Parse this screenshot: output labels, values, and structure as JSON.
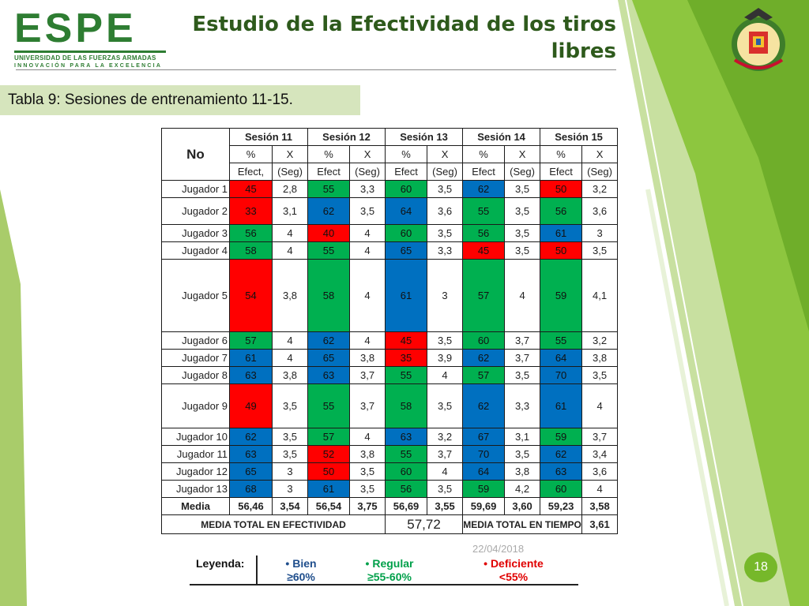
{
  "logo": {
    "name": "ESPE",
    "subtitle": "UNIVERSIDAD DE LAS FUERZAS ARMADAS",
    "tagline": "INNOVACIÓN PARA LA EXCELENCIA"
  },
  "title": {
    "line1": "Estudio de la Efectividad de los tiros",
    "line2": "libres"
  },
  "caption": "Tabla 9: Sesiones de entrenamiento 11-15.",
  "table": {
    "no_label": "No",
    "sessions": [
      "Sesión 11",
      "Sesión 12",
      "Sesión 13",
      "Sesión 14",
      "Sesión 15"
    ],
    "sub1": [
      "%",
      "X"
    ],
    "sub2": [
      "Efect,",
      "(Seg)",
      "Efect",
      "(Seg)",
      "Efect",
      "(Seg)",
      "Efect",
      "(Seg)",
      "Efect",
      "(Seg)"
    ],
    "rows": [
      {
        "name": "Jugador 1",
        "cells": [
          "45",
          "2,8",
          "55",
          "3,3",
          "60",
          "3,5",
          "62",
          "3,5",
          "50",
          "3,2"
        ],
        "colors": [
          "r",
          "g",
          "g",
          "b",
          "r"
        ]
      },
      {
        "name": "Jugador 2",
        "cells": [
          "33",
          "3,1",
          "62",
          "3,5",
          "64",
          "3,6",
          "55",
          "3,5",
          "56",
          "3,6"
        ],
        "colors": [
          "r",
          "b",
          "b",
          "g",
          "g"
        ]
      },
      {
        "name": "Jugador 3",
        "cells": [
          "56",
          "4",
          "40",
          "4",
          "60",
          "3,5",
          "56",
          "3,5",
          "61",
          "3"
        ],
        "colors": [
          "g",
          "r",
          "g",
          "g",
          "b"
        ]
      },
      {
        "name": "Jugador 4",
        "cells": [
          "58",
          "4",
          "55",
          "4",
          "65",
          "3,3",
          "45",
          "3,5",
          "50",
          "3,5"
        ],
        "colors": [
          "g",
          "g",
          "b",
          "r",
          "r"
        ]
      },
      {
        "name": "Jugador 5",
        "cells": [
          "54",
          "3,8",
          "58",
          "4",
          "61",
          "3",
          "57",
          "4",
          "59",
          "4,1"
        ],
        "colors": [
          "r",
          "g",
          "b",
          "g",
          "g"
        ]
      },
      {
        "name": "Jugador 6",
        "cells": [
          "57",
          "4",
          "62",
          "4",
          "45",
          "3,5",
          "60",
          "3,7",
          "55",
          "3,2"
        ],
        "colors": [
          "g",
          "b",
          "r",
          "g",
          "g"
        ]
      },
      {
        "name": "Jugador 7",
        "cells": [
          "61",
          "4",
          "65",
          "3,8",
          "35",
          "3,9",
          "62",
          "3,7",
          "64",
          "3,8"
        ],
        "colors": [
          "b",
          "b",
          "r",
          "b",
          "b"
        ]
      },
      {
        "name": "Jugador 8",
        "cells": [
          "63",
          "3,8",
          "63",
          "3,7",
          "55",
          "4",
          "57",
          "3,5",
          "70",
          "3,5"
        ],
        "colors": [
          "b",
          "b",
          "g",
          "g",
          "b"
        ]
      },
      {
        "name": "Jugador 9",
        "cells": [
          "49",
          "3,5",
          "55",
          "3,7",
          "58",
          "3,5",
          "62",
          "3,3",
          "61",
          "4"
        ],
        "colors": [
          "r",
          "g",
          "g",
          "b",
          "b"
        ]
      },
      {
        "name": "Jugador 10",
        "cells": [
          "62",
          "3,5",
          "57",
          "4",
          "63",
          "3,2",
          "67",
          "3,1",
          "59",
          "3,7"
        ],
        "colors": [
          "b",
          "g",
          "b",
          "b",
          "g"
        ]
      },
      {
        "name": "Jugador 11",
        "cells": [
          "63",
          "3,5",
          "52",
          "3,8",
          "55",
          "3,7",
          "70",
          "3,5",
          "62",
          "3,4"
        ],
        "colors": [
          "b",
          "r",
          "g",
          "b",
          "b"
        ]
      },
      {
        "name": "Jugador 12",
        "cells": [
          "65",
          "3",
          "50",
          "3,5",
          "60",
          "4",
          "64",
          "3,8",
          "63",
          "3,6"
        ],
        "colors": [
          "b",
          "r",
          "g",
          "b",
          "b"
        ]
      },
      {
        "name": "Jugador 13",
        "cells": [
          "68",
          "3",
          "61",
          "3,5",
          "56",
          "3,5",
          "59",
          "4,2",
          "60",
          "4"
        ],
        "colors": [
          "b",
          "b",
          "g",
          "g",
          "g"
        ]
      }
    ],
    "media": {
      "label": "Media",
      "cells": [
        "56,46",
        "3,54",
        "56,54",
        "3,75",
        "56,69",
        "3,55",
        "59,69",
        "3,60",
        "59,23",
        "3,58"
      ]
    },
    "totals": {
      "effect_label": "MEDIA TOTAL EN EFECTIVIDAD",
      "effect_value": "57,72",
      "time_label": "MEDIA TOTAL EN TIEMPO",
      "time_value": "3,61"
    }
  },
  "legend": {
    "title": "Leyenda:",
    "items": [
      {
        "name": "Bien",
        "range": "≥60%",
        "color": "#1f4e8c"
      },
      {
        "name": "Regular",
        "range": "≥55-60%",
        "color": "#00a04a"
      },
      {
        "name": "Deficiente",
        "range": "<55%",
        "color": "#e00000"
      }
    ]
  },
  "date": "22/04/2018",
  "page_number": "18",
  "colors": {
    "red": "#ff0000",
    "green": "#00b050",
    "blue": "#0070c0",
    "accent": "#76b82a",
    "caption_bg": "#d6e5bd"
  }
}
